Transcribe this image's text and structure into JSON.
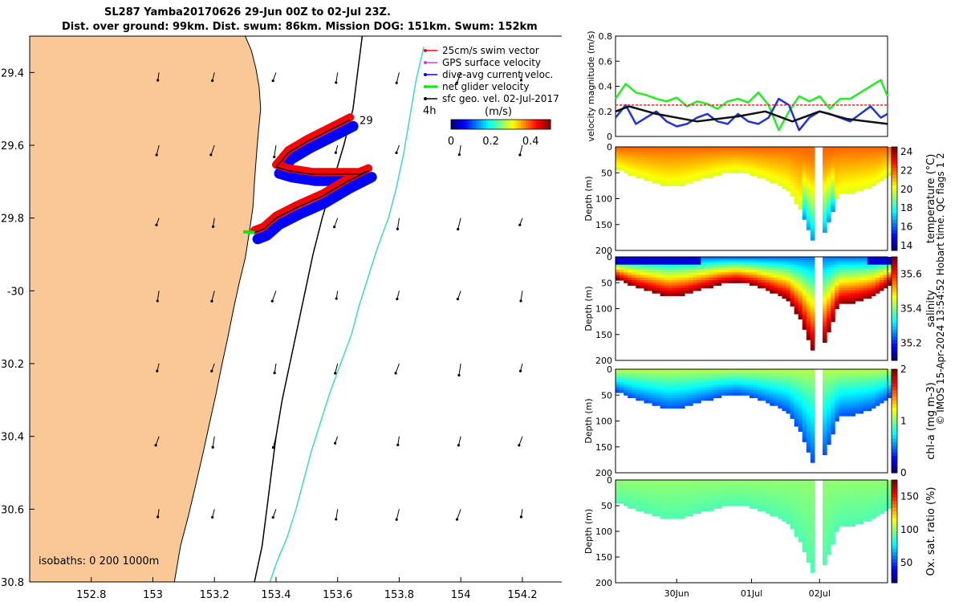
{
  "figure": {
    "title_line1": "SL287 Yamba20170626 29-Jun 00Z to 02-Jul 23Z.",
    "title_line2": "Dist. over ground: 99km. Dist. swum: 86km. Mission DOG: 151km. Swum: 152km",
    "credit": "© IMOS 15-Apr-2024 13:54:52 Hobart time. QC flags 1  2"
  },
  "colors": {
    "land": "#f9c896",
    "isobath_200": "#000000",
    "isobath_1000": "#3dd6d0",
    "swim_vector": "#ff0000",
    "gps_surface": "#cc44cc",
    "dive_avg": "#0000ff",
    "net_glider": "#00ee00",
    "sfc_geo": "#000000"
  },
  "chart_data": [
    {
      "type": "scatter",
      "kind": "map",
      "xlim": [
        152.6,
        154.38
      ],
      "ylim": [
        -30.8,
        -29.3
      ],
      "x_ticks": [
        152.8,
        153,
        153.2,
        153.4,
        153.6,
        153.8,
        154,
        154.2
      ],
      "x_tick_labels": [
        "152.8",
        "153",
        "153.2",
        "153.4",
        "153.6",
        "153.8",
        "154",
        "154.2"
      ],
      "y_ticks": [
        -29.4,
        -29.6,
        -29.8,
        -30,
        -30.2,
        -30.4,
        -30.6,
        -30.8
      ],
      "y_tick_labels": [
        "29.4",
        "29.6",
        "29.8",
        "-30",
        "30.2",
        "30.4",
        "30.6",
        "30.8"
      ],
      "legend": [
        "25cm/s swim vector",
        "GPS surface velocity",
        "dive-avg current veloc.",
        "net glider velocity",
        "sfc geo. vel. 02-Jul-2017"
      ],
      "legend_position": "top-right",
      "colorbar": {
        "label": "(m/s)",
        "ticks": [
          "0",
          "0.2",
          "0.4"
        ],
        "range": [
          0,
          0.5
        ]
      },
      "annotations": [
        "29",
        "4h"
      ],
      "isobaths_label": "isobaths: 0   200  1000m",
      "coastline": [
        [
          152.6,
          -29.3
        ],
        [
          153.3,
          -29.3
        ],
        [
          153.32,
          -29.34
        ],
        [
          153.335,
          -29.39
        ],
        [
          153.345,
          -29.44
        ],
        [
          153.35,
          -29.5
        ],
        [
          153.343,
          -29.56
        ],
        [
          153.337,
          -29.62
        ],
        [
          153.33,
          -29.7
        ],
        [
          153.325,
          -29.77
        ],
        [
          153.313,
          -29.84
        ],
        [
          153.3,
          -29.91
        ],
        [
          153.28,
          -29.98
        ],
        [
          153.262,
          -30.05
        ],
        [
          153.243,
          -30.13
        ],
        [
          153.225,
          -30.2
        ],
        [
          153.206,
          -30.28
        ],
        [
          153.185,
          -30.36
        ],
        [
          153.162,
          -30.45
        ],
        [
          153.14,
          -30.53
        ],
        [
          153.115,
          -30.62
        ],
        [
          153.09,
          -30.7
        ],
        [
          153.07,
          -30.8
        ],
        [
          152.6,
          -30.8
        ]
      ],
      "isobath_200": [
        [
          153.68,
          -29.3
        ],
        [
          153.665,
          -29.4
        ],
        [
          153.65,
          -29.5
        ],
        [
          153.62,
          -29.6
        ],
        [
          153.585,
          -29.7
        ],
        [
          153.55,
          -29.8
        ],
        [
          153.52,
          -29.9
        ],
        [
          153.495,
          -30.0
        ],
        [
          153.47,
          -30.1
        ],
        [
          153.445,
          -30.2
        ],
        [
          153.42,
          -30.3
        ],
        [
          153.4,
          -30.4
        ],
        [
          153.385,
          -30.5
        ],
        [
          153.37,
          -30.6
        ],
        [
          153.355,
          -30.7
        ],
        [
          153.33,
          -30.8
        ]
      ],
      "isobath_1000": [
        [
          153.88,
          -29.33
        ],
        [
          153.855,
          -29.42
        ],
        [
          153.835,
          -29.52
        ],
        [
          153.815,
          -29.62
        ],
        [
          153.79,
          -29.72
        ],
        [
          153.765,
          -29.8
        ],
        [
          153.73,
          -29.88
        ],
        [
          153.7,
          -29.96
        ],
        [
          153.67,
          -30.04
        ],
        [
          153.645,
          -30.12
        ],
        [
          153.61,
          -30.2
        ],
        [
          153.575,
          -30.28
        ],
        [
          153.545,
          -30.36
        ],
        [
          153.515,
          -30.44
        ],
        [
          153.49,
          -30.52
        ],
        [
          153.465,
          -30.6
        ],
        [
          153.435,
          -30.68
        ],
        [
          153.405,
          -30.74
        ],
        [
          153.38,
          -30.8
        ]
      ],
      "glider_track": [
        [
          153.64,
          -29.53
        ],
        [
          153.57,
          -29.56
        ],
        [
          153.5,
          -29.59
        ],
        [
          153.44,
          -29.62
        ],
        [
          153.4,
          -29.66
        ],
        [
          153.44,
          -29.67
        ],
        [
          153.52,
          -29.68
        ],
        [
          153.6,
          -29.68
        ],
        [
          153.67,
          -29.68
        ],
        [
          153.7,
          -29.67
        ],
        [
          153.63,
          -29.7
        ],
        [
          153.55,
          -29.74
        ],
        [
          153.47,
          -29.77
        ],
        [
          153.4,
          -29.8
        ],
        [
          153.36,
          -29.83
        ],
        [
          153.33,
          -29.84
        ]
      ],
      "geo_velocity_vectors": {
        "lon": [
          153.02,
          153.2,
          153.4,
          153.6,
          153.8,
          154.0,
          154.2
        ],
        "lat": [
          -29.4,
          -29.6,
          -29.8,
          -30.0,
          -30.2,
          -30.4,
          -30.6
        ]
      }
    },
    {
      "type": "line",
      "ylabel": "velocity magnitude (m/s)",
      "ylim": [
        0,
        0.8
      ],
      "y_ticks": [
        "0",
        "0.2",
        "0.4",
        "0.6",
        "0.8"
      ],
      "xlim": [
        0,
        4
      ],
      "series": [
        {
          "color": "green",
          "x": [
            0,
            0.15,
            0.3,
            0.45,
            0.6,
            0.75,
            0.9,
            1.05,
            1.2,
            1.35,
            1.5,
            1.65,
            1.8,
            1.95,
            2.1,
            2.25,
            2.4,
            2.55,
            2.7,
            2.85,
            3.0,
            3.15,
            3.3,
            3.45,
            3.6,
            3.75,
            3.9,
            4.0
          ],
          "values": [
            0.3,
            0.42,
            0.35,
            0.33,
            0.3,
            0.28,
            0.31,
            0.24,
            0.28,
            0.26,
            0.22,
            0.28,
            0.3,
            0.27,
            0.35,
            0.25,
            0.05,
            0.2,
            0.32,
            0.28,
            0.32,
            0.22,
            0.3,
            0.3,
            0.35,
            0.4,
            0.45,
            0.32
          ]
        },
        {
          "color": "blue",
          "x": [
            0,
            0.15,
            0.3,
            0.45,
            0.6,
            0.75,
            0.9,
            1.05,
            1.2,
            1.35,
            1.5,
            1.65,
            1.8,
            1.95,
            2.1,
            2.25,
            2.4,
            2.55,
            2.7,
            2.85,
            3.0,
            3.15,
            3.3,
            3.45,
            3.6,
            3.75,
            3.9,
            4.0
          ],
          "values": [
            0.15,
            0.25,
            0.1,
            0.15,
            0.2,
            0.12,
            0.08,
            0.1,
            0.15,
            0.18,
            0.12,
            0.1,
            0.18,
            0.12,
            0.1,
            0.15,
            0.3,
            0.25,
            0.05,
            0.15,
            0.2,
            0.18,
            0.15,
            0.12,
            0.18,
            0.24,
            0.15,
            0.18
          ]
        },
        {
          "color": "black",
          "x": [
            0,
            0.2,
            0.6,
            1.2,
            1.8,
            2.2,
            2.6,
            3.0,
            3.4,
            4.0
          ],
          "values": [
            0.2,
            0.24,
            0.18,
            0.12,
            0.16,
            0.2,
            0.12,
            0.2,
            0.14,
            0.1
          ]
        },
        {
          "color": "red",
          "x": [
            0,
            4
          ],
          "values": [
            0.25,
            0.25
          ]
        }
      ]
    },
    {
      "type": "heatmap",
      "variable": "temperature",
      "ylabel": "Depth (m)",
      "colorbar_label": "temperature (°C)",
      "colorbar_ticks": [
        "14",
        "16",
        "18",
        "20",
        "22",
        "24"
      ],
      "colorbar_range": [
        13.5,
        24.5
      ],
      "ylim": [
        200,
        0
      ],
      "y_ticks": [
        "0",
        "50",
        "100",
        "150",
        "200"
      ],
      "x": [
        0,
        0.25,
        0.5,
        0.75,
        1.0,
        1.25,
        1.5,
        1.75,
        2.0,
        2.25,
        2.5,
        2.7,
        2.85,
        3.0,
        3.25,
        3.5,
        3.75,
        4.0
      ],
      "max_depth": [
        40,
        55,
        65,
        75,
        70,
        60,
        50,
        45,
        52,
        65,
        80,
        120,
        175,
        180,
        90,
        85,
        75,
        50
      ],
      "surface_value": 22.0,
      "deep_value": 20.0,
      "core_min": 16.5
    },
    {
      "type": "heatmap",
      "variable": "salinity",
      "ylabel": "Depth (m)",
      "colorbar_label": "salinity",
      "colorbar_ticks": [
        "35.2",
        "35.4",
        "35.6"
      ],
      "colorbar_range": [
        35.1,
        35.7
      ],
      "ylim": [
        200,
        0
      ],
      "y_ticks": [
        "0",
        "50",
        "100",
        "150",
        "200"
      ],
      "x": [
        0,
        0.25,
        0.5,
        0.75,
        1.0,
        1.25,
        1.5,
        1.75,
        2.0,
        2.25,
        2.5,
        2.7,
        2.85,
        3.0,
        3.25,
        3.5,
        3.75,
        4.0
      ],
      "max_depth": [
        40,
        55,
        65,
        75,
        70,
        60,
        50,
        45,
        52,
        65,
        80,
        120,
        175,
        180,
        90,
        85,
        75,
        50
      ],
      "surface_value": 35.25,
      "deep_value": 35.7
    },
    {
      "type": "heatmap",
      "variable": "chl-a",
      "ylabel": "Depth (m)",
      "colorbar_label": "chl-a (mg m-3)",
      "colorbar_ticks": [
        "0",
        "1",
        "2"
      ],
      "colorbar_range": [
        0,
        2
      ],
      "ylim": [
        200,
        0
      ],
      "y_ticks": [
        "0",
        "50",
        "100",
        "150",
        "200"
      ],
      "x": [
        0,
        0.25,
        0.5,
        0.75,
        1.0,
        1.25,
        1.5,
        1.75,
        2.0,
        2.25,
        2.5,
        2.7,
        2.85,
        3.0,
        3.25,
        3.5,
        3.75,
        4.0
      ],
      "max_depth": [
        40,
        55,
        65,
        75,
        70,
        60,
        50,
        45,
        52,
        65,
        80,
        120,
        175,
        180,
        90,
        85,
        75,
        50
      ],
      "surface_value": 1.1,
      "deep_value": 0.4
    },
    {
      "type": "heatmap",
      "variable": "oxygen saturation",
      "ylabel": "Depth (m)",
      "colorbar_label": "Ox. sat. ratio (%)",
      "colorbar_ticks": [
        "50",
        "100",
        "150"
      ],
      "colorbar_range": [
        20,
        175
      ],
      "ylim": [
        200,
        0
      ],
      "y_ticks": [
        "0",
        "50",
        "100",
        "150",
        "200"
      ],
      "x_tick_labels": [
        "30Jun",
        "01Jul",
        "02Jul"
      ],
      "x": [
        0,
        0.25,
        0.5,
        0.75,
        1.0,
        1.25,
        1.5,
        1.75,
        2.0,
        2.25,
        2.5,
        2.7,
        2.85,
        3.0,
        3.25,
        3.5,
        3.75,
        4.0
      ],
      "max_depth": [
        40,
        55,
        65,
        75,
        70,
        60,
        50,
        45,
        52,
        65,
        80,
        120,
        175,
        180,
        90,
        85,
        75,
        50
      ],
      "surface_value": 100,
      "deep_value": 90
    }
  ]
}
